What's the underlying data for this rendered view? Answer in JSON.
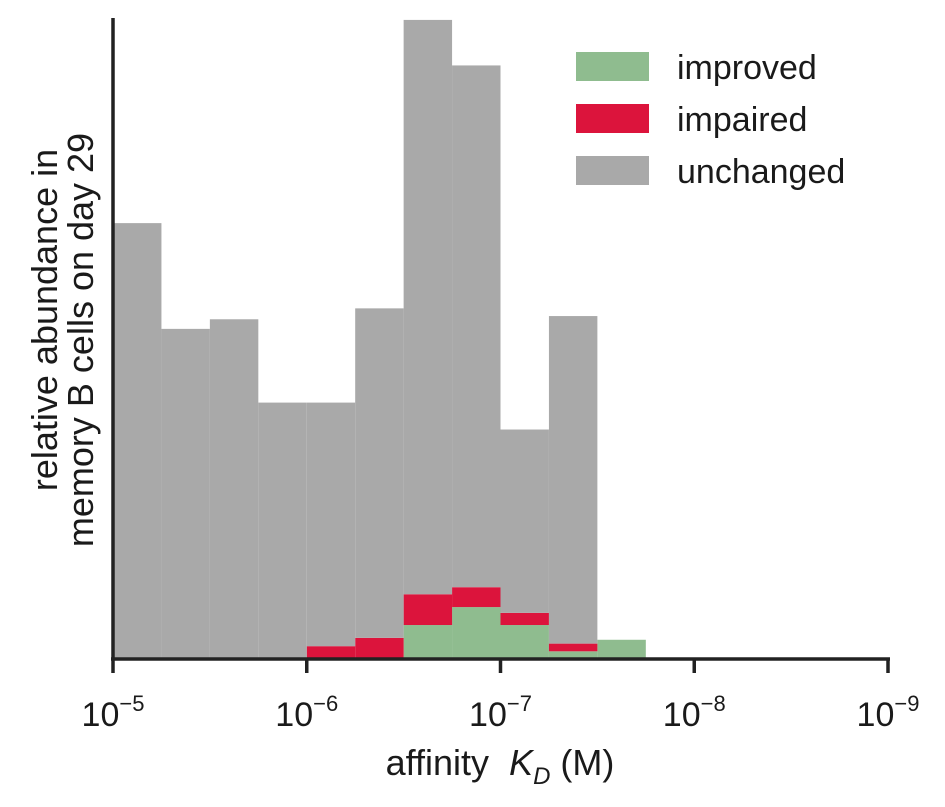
{
  "chart_data": {
    "type": "bar",
    "subtype": "stacked-histogram",
    "title": "",
    "xlabel": "affinity",
    "xlabel_symbol": "K",
    "xlabel_subscript": "D",
    "xlabel_unit": "(M)",
    "ylabel_line1": "relative abundance in",
    "ylabel_line2": "memory B cells on day 29",
    "x_scale": "log",
    "x_direction": "reversed",
    "xlim": [
      1e-05,
      1e-09
    ],
    "ylim": [
      0,
      1
    ],
    "grid": false,
    "legend_position": "top-right",
    "x_ticks": [
      {
        "value": 1e-05,
        "base": "10",
        "exp": "−5"
      },
      {
        "value": 1e-06,
        "base": "10",
        "exp": "−6"
      },
      {
        "value": 1e-07,
        "base": "10",
        "exp": "−7"
      },
      {
        "value": 1e-08,
        "base": "10",
        "exp": "−8"
      },
      {
        "value": 1e-09,
        "base": "10",
        "exp": "−9"
      }
    ],
    "bin_edges_log10": [
      -5.0,
      -5.25,
      -5.5,
      -5.75,
      -6.0,
      -6.25,
      -6.5,
      -6.75,
      -7.0,
      -7.25,
      -7.5,
      -7.75
    ],
    "series": [
      {
        "name": "improved",
        "color": "#8fbc8f",
        "values": [
          0,
          0,
          0,
          0,
          0,
          0,
          0.053,
          0.081,
          0.053,
          0.012,
          0.03
        ]
      },
      {
        "name": "impaired",
        "color": "#dc143c",
        "values": [
          0,
          0,
          0,
          0,
          0.02,
          0.033,
          0.048,
          0.031,
          0.019,
          0.012,
          0
        ]
      },
      {
        "name": "unchanged",
        "color": "#a9a9a9",
        "values": [
          0.68,
          0.515,
          0.53,
          0.4,
          0.38,
          0.514,
          0.896,
          0.814,
          0.286,
          0.511,
          0
        ]
      }
    ],
    "legend_order": [
      "improved",
      "impaired",
      "unchanged"
    ]
  }
}
